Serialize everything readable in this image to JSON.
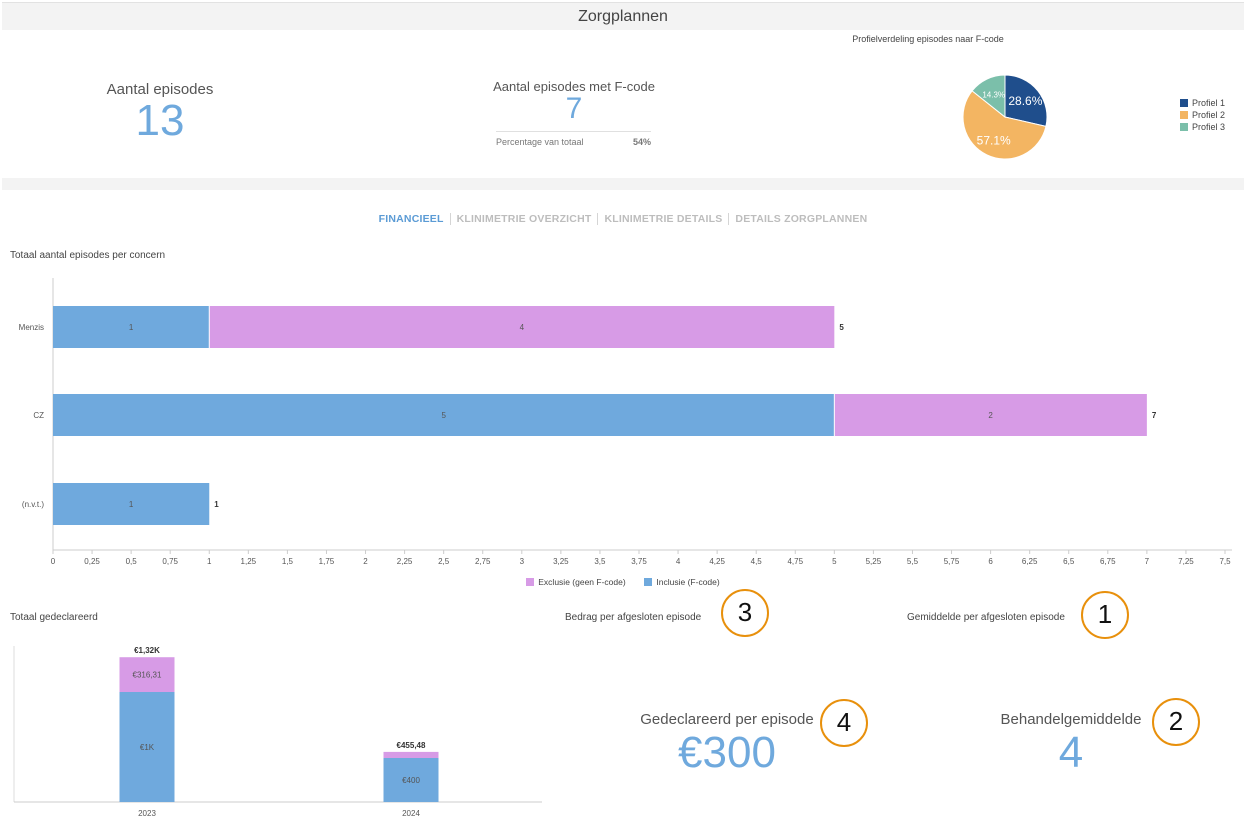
{
  "header": {
    "title": "Zorgplannen"
  },
  "kpis": {
    "episodes": {
      "label": "Aantal episodes",
      "value": "13"
    },
    "fcode": {
      "label": "Aantal episodes met F-code",
      "value": "7",
      "pct_label": "Percentage van totaal",
      "pct_value": "54%"
    }
  },
  "pie": {
    "title": "Profielverdeling episodes naar F-code",
    "slices": [
      {
        "name": "Profiel 1",
        "value": 28.6,
        "label": "28.6%",
        "color": "#1f4e8c"
      },
      {
        "name": "Profiel 2",
        "value": 57.1,
        "label": "57.1%",
        "color": "#f3b562"
      },
      {
        "name": "Profiel 3",
        "value": 14.3,
        "label": "14.3%",
        "color": "#7bbfaa"
      }
    ]
  },
  "tabs": [
    {
      "label": "FINANCIEEL",
      "active": true
    },
    {
      "label": "KLINIMETRIE OVERZICHT",
      "active": false
    },
    {
      "label": "KLINIMETRIE DETAILS",
      "active": false
    },
    {
      "label": "DETAILS ZORGPLANNEN",
      "active": false
    }
  ],
  "chart_data": [
    {
      "type": "bar",
      "orientation": "horizontal",
      "stacked": true,
      "title": "Totaal aantal episodes per concern",
      "categories": [
        "Menzis",
        "CZ",
        "(n.v.t.)"
      ],
      "series": [
        {
          "name": "Inclusie (F-code)",
          "values": [
            1,
            5,
            1
          ],
          "color": "#6fa9dd"
        },
        {
          "name": "Exclusie (geen F-code)",
          "values": [
            4,
            2,
            0
          ],
          "color": "#d79be6"
        }
      ],
      "totals": [
        "5",
        "7",
        "1"
      ],
      "xlim": [
        0,
        7.5
      ],
      "xticks": [
        "0",
        "0,25",
        "0,5",
        "0,75",
        "1",
        "1,25",
        "1,5",
        "1,75",
        "2",
        "2,25",
        "2,5",
        "2,75",
        "3",
        "3,25",
        "3,5",
        "3,75",
        "4",
        "4,25",
        "4,5",
        "4,75",
        "5",
        "5,25",
        "5,5",
        "5,75",
        "6",
        "6,25",
        "6,5",
        "6,75",
        "7",
        "7,25",
        "7,5"
      ],
      "legend": [
        "Exclusie (geen F-code)",
        "Inclusie (F-code)"
      ],
      "legend_position": "bottom"
    },
    {
      "type": "bar",
      "stacked": true,
      "title": "Totaal gedeclareerd",
      "categories": [
        "2023",
        "2024"
      ],
      "series": [
        {
          "name": "Inclusie",
          "values": [
            1000,
            400
          ],
          "labels": [
            "€1K",
            "€400"
          ],
          "color": "#6fa9dd"
        },
        {
          "name": "Exclusie",
          "values": [
            316.31,
            55.48
          ],
          "labels": [
            "€316,31",
            ""
          ],
          "color": "#d79be6"
        }
      ],
      "totals": [
        "€1,32K",
        "€455,48"
      ],
      "ylim": [
        0,
        1400
      ]
    }
  ],
  "metrics": {
    "bedrag_label": "Bedrag per afgesloten episode",
    "gemiddelde_label": "Gemiddelde per afgesloten episode",
    "gedeclareerd_label": "Gedeclareerd per episode",
    "gedeclareerd_value": "€300",
    "behandel_label": "Behandelgemiddelde",
    "behandel_value": "4"
  },
  "callouts": [
    "1",
    "2",
    "3",
    "4"
  ]
}
